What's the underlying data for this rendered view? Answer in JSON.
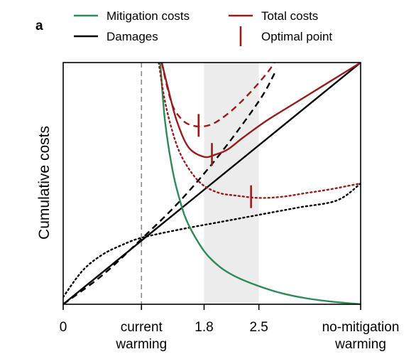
{
  "chart_data": {
    "type": "line",
    "panel_label": "a",
    "ylabel": "Cumulative costs",
    "xlabel": "",
    "x_ticks": [
      {
        "x": 0,
        "lines": [
          "0"
        ]
      },
      {
        "x": 1,
        "lines": [
          "current",
          "warming"
        ]
      },
      {
        "x": 1.8,
        "lines": [
          "1.8"
        ]
      },
      {
        "x": 2.5,
        "lines": [
          "2.5"
        ]
      },
      {
        "x": 3.8,
        "lines": [
          "no-mitigation",
          "warming"
        ]
      }
    ],
    "xlim": [
      0,
      3.8
    ],
    "ylim": [
      0,
      1
    ],
    "y_ticks": [],
    "shaded_band": {
      "x0": 1.8,
      "x1": 2.5,
      "color": "#ececec"
    },
    "reference_line": {
      "x": 1,
      "style": "dashed",
      "color": "#888888"
    },
    "colors": {
      "mitigation": "#2e8b57",
      "damages": "#000000",
      "total": "#9b1b1b"
    },
    "legend": {
      "placement": "top",
      "items": [
        {
          "label": "Mitigation costs",
          "key": "mitigation",
          "symbol": "line"
        },
        {
          "label": "Total costs",
          "key": "total",
          "symbol": "line"
        },
        {
          "label": "Damages",
          "key": "damages",
          "symbol": "line"
        },
        {
          "label": "Optimal point",
          "key": "total",
          "symbol": "vtick"
        }
      ]
    },
    "series": [
      {
        "key": "mitigation",
        "style": "solid",
        "x": [
          1.24,
          1.3,
          1.4,
          1.5,
          1.6,
          1.8,
          2.0,
          2.2,
          2.5,
          2.8,
          3.1,
          3.4,
          3.8
        ],
        "y": [
          1.0,
          0.76,
          0.55,
          0.42,
          0.33,
          0.22,
          0.155,
          0.115,
          0.075,
          0.045,
          0.025,
          0.012,
          0.0
        ]
      },
      {
        "key": "damages",
        "style": "solid",
        "x": [
          0,
          3.8
        ],
        "y": [
          0,
          1.0
        ]
      },
      {
        "key": "damages",
        "style": "dashed",
        "x": [
          0,
          0.5,
          1.0,
          1.5,
          2.0,
          2.5,
          2.7
        ],
        "y": [
          0,
          0.12,
          0.27,
          0.43,
          0.62,
          0.84,
          0.955
        ]
      },
      {
        "key": "damages",
        "style": "dotted",
        "x": [
          0,
          0.25,
          0.5,
          0.75,
          1.0,
          1.5,
          2.0,
          2.5,
          3.0,
          3.5,
          3.8
        ],
        "y": [
          0.03,
          0.14,
          0.205,
          0.245,
          0.275,
          0.31,
          0.34,
          0.37,
          0.4,
          0.43,
          0.5
        ]
      },
      {
        "key": "total",
        "style": "solid",
        "x": [
          1.26,
          1.35,
          1.45,
          1.6,
          1.8,
          1.95,
          2.1,
          2.3,
          2.6,
          3.0,
          3.4,
          3.8
        ],
        "y": [
          1.0,
          0.88,
          0.76,
          0.65,
          0.61,
          0.62,
          0.64,
          0.69,
          0.76,
          0.84,
          0.92,
          1.0
        ]
      },
      {
        "key": "total",
        "style": "dashed",
        "x": [
          1.26,
          1.32,
          1.4,
          1.5,
          1.6,
          1.75,
          1.9,
          2.05,
          2.2,
          2.4,
          2.6,
          2.7
        ],
        "y": [
          1.0,
          0.91,
          0.82,
          0.77,
          0.745,
          0.735,
          0.745,
          0.775,
          0.815,
          0.88,
          0.955,
          1.0
        ]
      },
      {
        "key": "total",
        "style": "dotted",
        "x": [
          1.22,
          1.3,
          1.4,
          1.5,
          1.65,
          1.8,
          2.0,
          2.2,
          2.5,
          2.8,
          3.1,
          3.4,
          3.8
        ],
        "y": [
          1.0,
          0.84,
          0.71,
          0.62,
          0.54,
          0.49,
          0.46,
          0.45,
          0.44,
          0.445,
          0.46,
          0.475,
          0.5
        ]
      }
    ],
    "optimal_points": [
      {
        "x": 1.73,
        "y": 0.74,
        "label": "dashed optimum"
      },
      {
        "x": 1.9,
        "y": 0.62,
        "label": "solid optimum"
      },
      {
        "x": 2.4,
        "y": 0.445,
        "label": "dotted optimum"
      }
    ]
  }
}
